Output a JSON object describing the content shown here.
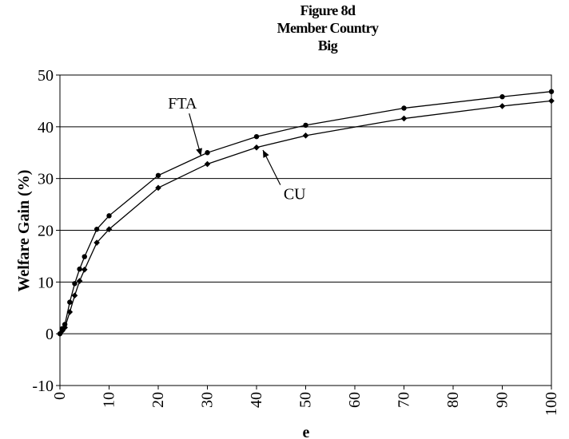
{
  "title_lines": [
    "Figure 8d",
    "Member Country",
    "Big"
  ],
  "chart_data": {
    "type": "line",
    "title": "Figure 8d Member Country Big",
    "xlabel": "e",
    "ylabel": "Welfare Gain (%)",
    "xlim": [
      0,
      100
    ],
    "ylim": [
      -10,
      50
    ],
    "x_ticks": [
      "0",
      "10",
      "20",
      "30",
      "40",
      "50",
      "60",
      "70",
      "80",
      "90",
      "100"
    ],
    "y_ticks": [
      "50",
      "40",
      "30",
      "20",
      "10",
      "0",
      "-10"
    ],
    "grid": "horizontal",
    "legend": "none",
    "series": [
      {
        "name": "FTA",
        "marker": "circle",
        "x": [
          0,
          0.5,
          1,
          2,
          3,
          4,
          5,
          7.5,
          10,
          20,
          30,
          40,
          50,
          70,
          90,
          100
        ],
        "y": [
          0,
          1.0,
          1.8,
          6.1,
          9.7,
          12.5,
          14.9,
          20.2,
          22.8,
          30.6,
          35.0,
          38.1,
          40.3,
          43.6,
          45.8,
          46.8
        ]
      },
      {
        "name": "CU",
        "marker": "diamond",
        "x": [
          0,
          0.5,
          1,
          2,
          3,
          4,
          5,
          7.5,
          10,
          20,
          30,
          40,
          50,
          70,
          90,
          100
        ],
        "y": [
          0,
          0.6,
          1.2,
          4.2,
          7.4,
          10.2,
          12.4,
          17.6,
          20.2,
          28.2,
          32.8,
          36.0,
          38.3,
          41.6,
          44.0,
          45.0
        ]
      }
    ],
    "annotations": [
      {
        "text": "FTA",
        "x": 22,
        "y": 43.5,
        "arrow_to": [
          28.7,
          34.4
        ]
      },
      {
        "text": "CU",
        "x": 45.5,
        "y": 26.0,
        "arrow_to": [
          41.3,
          35.5
        ]
      }
    ]
  }
}
